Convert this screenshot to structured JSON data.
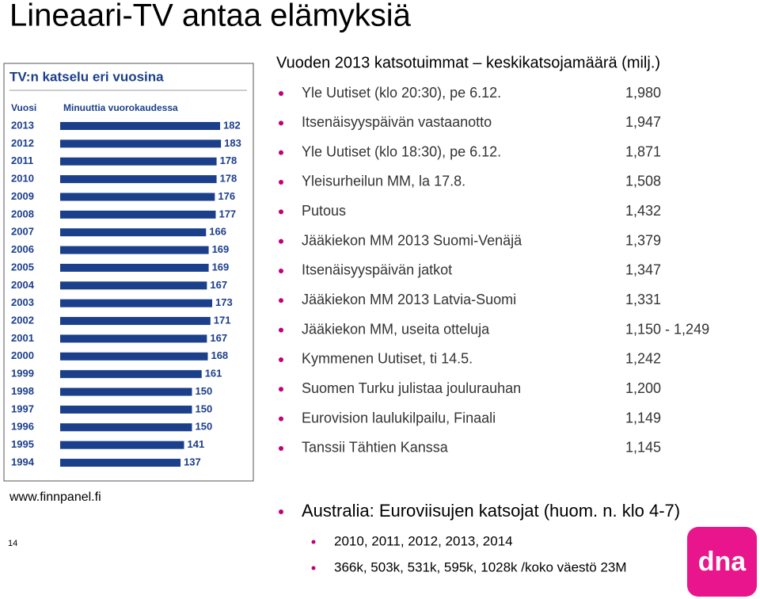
{
  "title": "Lineaari-TV antaa elämyksiä",
  "chart": {
    "type": "bar",
    "title": "TV:n katselu eri vuosina",
    "category_header": "Vuosi",
    "value_header": "Minuuttia vuorokaudessa",
    "categories": [
      "2013",
      "2012",
      "2011",
      "2010",
      "2009",
      "2008",
      "2007",
      "2006",
      "2005",
      "2004",
      "2003",
      "2002",
      "2001",
      "2000",
      "1999",
      "1998",
      "1997",
      "1996",
      "1995",
      "1994"
    ],
    "values": [
      182,
      183,
      178,
      178,
      176,
      177,
      166,
      169,
      169,
      167,
      173,
      171,
      167,
      168,
      161,
      150,
      150,
      150,
      141,
      137
    ],
    "color": "#1b3f8b"
  },
  "list": {
    "heading": "Vuoden 2013 katsotuimmat – keskikatsojamäärä (milj.)",
    "items": [
      {
        "label": "Yle Uutiset (klo 20:30), pe 6.12.",
        "value": "1,980"
      },
      {
        "label": "Itsenäisyyspäivän vastaanotto",
        "value": "1,947"
      },
      {
        "label": "Yle Uutiset (klo 18:30), pe 6.12.",
        "value": "1,871"
      },
      {
        "label": "Yleisurheilun MM, la 17.8.",
        "value": "1,508"
      },
      {
        "label": "Putous",
        "value": "1,432"
      },
      {
        "label": "Jääkiekon MM 2013 Suomi-Venäjä",
        "value": "1,379"
      },
      {
        "label": "Itsenäisyyspäivän jatkot",
        "value": "1,347"
      },
      {
        "label": "Jääkiekon MM 2013 Latvia-Suomi",
        "value": "1,331"
      },
      {
        "label": "Jääkiekon MM, useita otteluja",
        "value": "1,150 - 1,249"
      },
      {
        "label": "Kymmenen Uutiset, ti 14.5.",
        "value": "1,242"
      },
      {
        "label": "Suomen Turku julistaa joulurauhan",
        "value": "1,200"
      },
      {
        "label": "Eurovision laulukilpailu, Finaali",
        "value": "1,149"
      },
      {
        "label": "Tanssii Tähtien Kanssa",
        "value": "1,145"
      }
    ]
  },
  "source": "www.finnpanel.fi",
  "page_number": 14,
  "note": {
    "heading": "Australia: Euroviisujen katsojat (huom. n. klo 4-7)",
    "items": [
      "2010, 2011, 2012, 2013, 2014",
      "366k, 503k, 531k, 595k, 1028k /koko väestö 23M"
    ]
  },
  "logo": "dna"
}
